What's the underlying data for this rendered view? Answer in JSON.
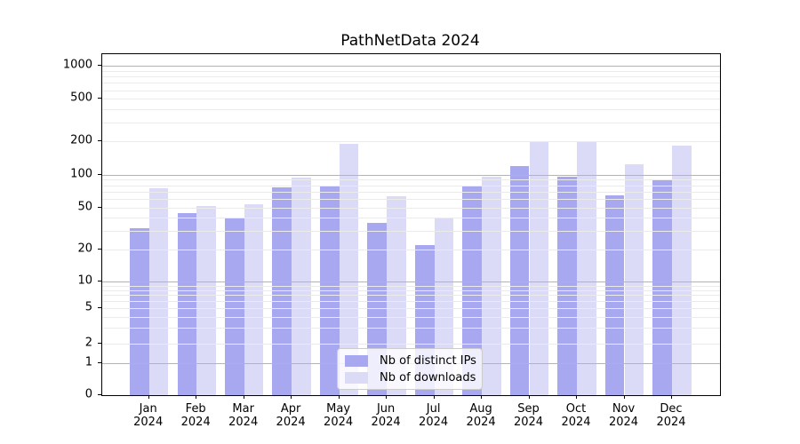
{
  "title": "PathNetData 2024",
  "x_axis": {
    "months": [
      "Jan",
      "Feb",
      "Mar",
      "Apr",
      "May",
      "Jun",
      "Jul",
      "Aug",
      "Sep",
      "Oct",
      "Nov",
      "Dec"
    ],
    "year": "2024"
  },
  "y_axis": {
    "tick_labels": [
      "0",
      "1",
      "2",
      "5",
      "10",
      "20",
      "50",
      "100",
      "200",
      "500",
      "1000"
    ]
  },
  "legend": {
    "items": [
      {
        "label": "Nb of distinct IPs",
        "color": "#a8a8f0"
      },
      {
        "label": "Nb of downloads",
        "color": "#dbdbf8"
      }
    ]
  },
  "chart_data": {
    "type": "bar",
    "title": "PathNetData 2024",
    "xlabel": "",
    "ylabel": "",
    "categories": [
      "Jan 2024",
      "Feb 2024",
      "Mar 2024",
      "Apr 2024",
      "May 2024",
      "Jun 2024",
      "Jul 2024",
      "Aug 2024",
      "Sep 2024",
      "Oct 2024",
      "Nov 2024",
      "Dec 2024"
    ],
    "series": [
      {
        "name": "Nb of distinct IPs",
        "color": "#a8a8f0",
        "values": [
          32,
          44,
          40,
          77,
          78,
          36,
          22,
          78,
          120,
          96,
          65,
          91
        ]
      },
      {
        "name": "Nb of downloads",
        "color": "#dbdbf8",
        "values": [
          75,
          52,
          54,
          94,
          190,
          64,
          40,
          96,
          200,
          196,
          125,
          182
        ]
      }
    ],
    "y_scale": "symlog",
    "y_ticks": [
      0,
      1,
      2,
      5,
      10,
      20,
      50,
      100,
      200,
      500,
      1000
    ],
    "ylim": [
      0,
      1240
    ],
    "grid": "both",
    "legend_position": "lower center"
  }
}
